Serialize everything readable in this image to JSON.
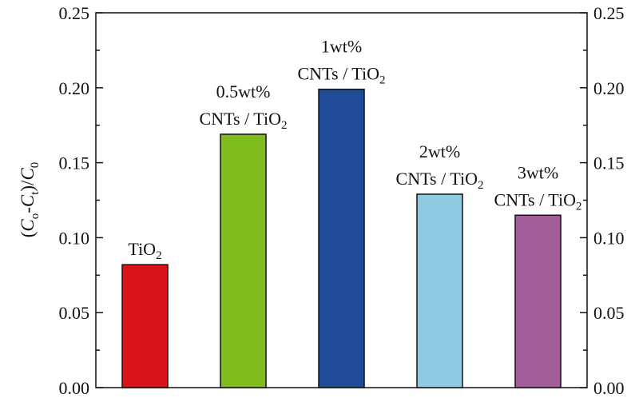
{
  "chart_data": {
    "type": "bar",
    "ylabel": "(Co-Ct)/C0",
    "ylabel_parts": {
      "a": "(",
      "b": "C",
      "c": "o",
      "d": "-",
      "e": "C",
      "f": "t",
      "g": ")/",
      "h": "C",
      "i": "0"
    },
    "ylim": [
      0,
      0.25
    ],
    "yticks": [
      "0.00",
      "0.05",
      "0.10",
      "0.15",
      "0.20",
      "0.25"
    ],
    "ytick_values": [
      0,
      0.05,
      0.1,
      0.15,
      0.2,
      0.25
    ],
    "legend": "none",
    "grid": false,
    "categories": [
      {
        "line1": "",
        "main": "TiO",
        "sub": "2"
      },
      {
        "line1": "0.5wt%",
        "main": "CNTs / TiO",
        "sub": "2"
      },
      {
        "line1": "1wt%",
        "main": "CNTs / TiO",
        "sub": "2"
      },
      {
        "line1": "2wt%",
        "main": "CNTs / TiO",
        "sub": "2"
      },
      {
        "line1": "3wt%",
        "main": "CNTs / TiO",
        "sub": "2"
      }
    ],
    "values": [
      0.082,
      0.169,
      0.199,
      0.129,
      0.115
    ],
    "colors": [
      "#d7141a",
      "#80bd1c",
      "#1f4b97",
      "#8ecae2",
      "#a35e9a"
    ]
  }
}
